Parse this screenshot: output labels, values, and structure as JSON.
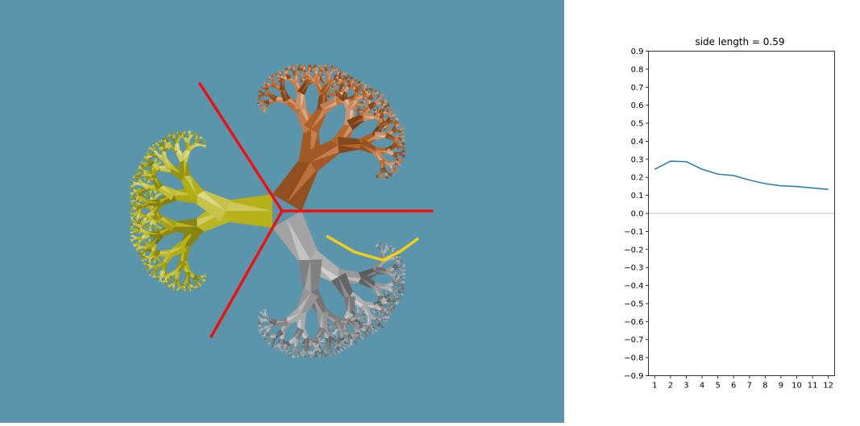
{
  "colors": {
    "scene_background": "#5b95ab",
    "divider_lines": "#ee1111",
    "highlight_path": "#f2cf18",
    "tree_yellow": "#b7b219",
    "tree_orange": "#b8652a",
    "tree_gray": "#8c8c8c",
    "series_line": "#1f77b4",
    "zero_line": "#bdbdbd"
  },
  "scene": {
    "icon": "three-tree-fractal-render"
  },
  "chart_data": {
    "type": "line",
    "title": "side length = 0.59",
    "xlabel": "",
    "ylabel": "",
    "x": [
      1,
      2,
      3,
      4,
      5,
      6,
      7,
      8,
      9,
      10,
      11,
      12
    ],
    "series": [
      {
        "values": [
          0.245,
          0.29,
          0.287,
          0.245,
          0.218,
          0.21,
          0.185,
          0.165,
          0.153,
          0.149,
          0.141,
          0.133
        ]
      }
    ],
    "xlim": [
      0.6,
      12.4
    ],
    "ylim": [
      -0.9,
      0.9
    ],
    "xticks": [
      "1",
      "2",
      "3",
      "4",
      "5",
      "6",
      "7",
      "8",
      "9",
      "10",
      "11",
      "12"
    ],
    "yticks": [
      "−0.9",
      "−0.8",
      "−0.7",
      "−0.6",
      "−0.5",
      "−0.4",
      "−0.3",
      "−0.2",
      "−0.1",
      "0.0",
      "0.1",
      "0.2",
      "0.3",
      "0.4",
      "0.5",
      "0.6",
      "0.7",
      "0.8",
      "0.9"
    ],
    "ytick_values": [
      -0.9,
      -0.8,
      -0.7,
      -0.6,
      -0.5,
      -0.4,
      -0.3,
      -0.2,
      -0.1,
      0.0,
      0.1,
      0.2,
      0.3,
      0.4,
      0.5,
      0.6,
      0.7,
      0.8,
      0.9
    ],
    "reference_line_y": 0.0,
    "grid": false,
    "legend": "none"
  }
}
